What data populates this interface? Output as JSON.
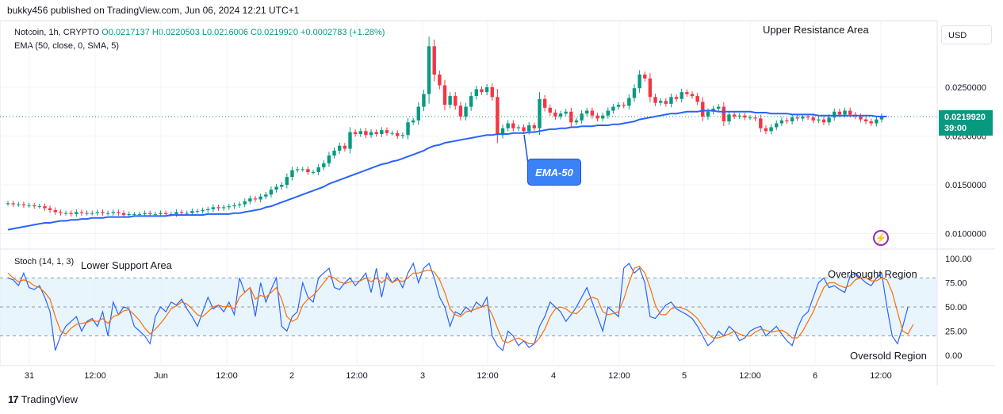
{
  "publisher_line": "bukky456 published on TradingView.com, Jun 06, 2024 12:21 UTC+1",
  "legend": {
    "symbol": "Notcoin, 1h, CRYPTO",
    "ohlc": "O0.0217137 H0.0220503 L0.0216006 C0.0219920 +0.0002783 (+1.28%)",
    "ema": "EMA (50, close, 0, SMA, 5)"
  },
  "stoch_label": "Stoch (14, 1, 3)",
  "currency_button": "USD",
  "last_price": {
    "price": "0.0219920",
    "countdown": "39:00"
  },
  "annotations": {
    "upper_resistance": "Upper Resistance Area",
    "lower_support": "Lower Support Area",
    "ema_callout": "EMA-50",
    "overbought": "Overbought Region",
    "oversold": "Oversold Region"
  },
  "icons": {
    "alert": "lightning-bolt-icon",
    "brand": "tradingview-logo-icon"
  },
  "brand_text": "TradingView",
  "colors": {
    "up": "#089981",
    "down": "#f23645",
    "ema": "#2962ff",
    "k_line": "#2962ff",
    "d_line": "#ff6d00",
    "band_fill": "#e3f2fd"
  },
  "chart_data": [
    {
      "type": "candlestick",
      "title": "Notcoin, 1h, CRYPTO",
      "y_ticks": [
        "0.0250000",
        "0.0200000",
        "0.0150000",
        "0.0100000"
      ],
      "ylim": [
        0.0095,
        0.0295
      ],
      "x_ticks": [
        "31",
        "12:00",
        "Jun",
        "12:00",
        "2",
        "12:00",
        "3",
        "12:00",
        "4",
        "12:00",
        "5",
        "12:00",
        "6",
        "12:00"
      ],
      "last_close": 0.021992,
      "close": [
        0.0131,
        0.013,
        0.013,
        0.0129,
        0.0129,
        0.0128,
        0.0128,
        0.0126,
        0.0124,
        0.0122,
        0.0121,
        0.0121,
        0.012,
        0.0122,
        0.0121,
        0.0121,
        0.0121,
        0.0122,
        0.0121,
        0.0121,
        0.0122,
        0.0121,
        0.0119,
        0.012,
        0.012,
        0.012,
        0.0121,
        0.012,
        0.012,
        0.0121,
        0.012,
        0.012,
        0.0122,
        0.0121,
        0.0121,
        0.0123,
        0.0123,
        0.0124,
        0.0125,
        0.0127,
        0.0126,
        0.0127,
        0.0128,
        0.0129,
        0.013,
        0.0133,
        0.0136,
        0.0135,
        0.0138,
        0.014,
        0.0145,
        0.0148,
        0.015,
        0.0158,
        0.0165,
        0.0166,
        0.0166,
        0.0163,
        0.0163,
        0.0168,
        0.0172,
        0.018,
        0.0185,
        0.019,
        0.0187,
        0.0204,
        0.0202,
        0.0205,
        0.0201,
        0.0204,
        0.0202,
        0.0206,
        0.0203,
        0.0203,
        0.02,
        0.0201,
        0.0214,
        0.0216,
        0.023,
        0.0243,
        0.0292,
        0.0263,
        0.0252,
        0.0232,
        0.0241,
        0.0231,
        0.022,
        0.023,
        0.0241,
        0.0248,
        0.0245,
        0.025,
        0.024,
        0.0201,
        0.0208,
        0.0213,
        0.0208,
        0.0209,
        0.0205,
        0.0211,
        0.0208,
        0.0238,
        0.0229,
        0.0224,
        0.022,
        0.0223,
        0.0225,
        0.0214,
        0.0216,
        0.0223,
        0.0226,
        0.0221,
        0.0218,
        0.0221,
        0.0226,
        0.023,
        0.0232,
        0.0231,
        0.0239,
        0.0249,
        0.0263,
        0.0259,
        0.024,
        0.0234,
        0.0236,
        0.0233,
        0.024,
        0.0238,
        0.0245,
        0.0243,
        0.0241,
        0.0235,
        0.022,
        0.0225,
        0.0228,
        0.023,
        0.0215,
        0.0222,
        0.022,
        0.0221,
        0.0219,
        0.0219,
        0.0218,
        0.0208,
        0.0205,
        0.0209,
        0.0213,
        0.0216,
        0.0215,
        0.0219,
        0.0218,
        0.022,
        0.0219,
        0.0216,
        0.0217,
        0.0214,
        0.0219,
        0.0225,
        0.0222,
        0.0226,
        0.0222,
        0.022,
        0.0217,
        0.0215,
        0.0213,
        0.0217,
        0.022
      ],
      "ema_50": [
        0.0104,
        0.0105,
        0.0106,
        0.0107,
        0.0108,
        0.0109,
        0.011,
        0.0111,
        0.0111,
        0.0112,
        0.0113,
        0.0113,
        0.0114,
        0.0114,
        0.0115,
        0.0115,
        0.0116,
        0.0116,
        0.0116,
        0.0117,
        0.0117,
        0.0117,
        0.0117,
        0.0117,
        0.0118,
        0.0118,
        0.0118,
        0.0118,
        0.0118,
        0.0118,
        0.0118,
        0.0119,
        0.0119,
        0.0119,
        0.0119,
        0.0119,
        0.0119,
        0.0119,
        0.012,
        0.012,
        0.012,
        0.012,
        0.012,
        0.0121,
        0.0121,
        0.0122,
        0.0123,
        0.0124,
        0.0125,
        0.0127,
        0.0128,
        0.013,
        0.0132,
        0.0134,
        0.0136,
        0.0138,
        0.014,
        0.0142,
        0.0144,
        0.0146,
        0.0148,
        0.0151,
        0.0153,
        0.0155,
        0.0157,
        0.0159,
        0.0161,
        0.0163,
        0.0165,
        0.0167,
        0.0169,
        0.0171,
        0.0172,
        0.0174,
        0.0175,
        0.0177,
        0.0179,
        0.0181,
        0.0183,
        0.0185,
        0.0188,
        0.019,
        0.0191,
        0.0193,
        0.0194,
        0.0195,
        0.0196,
        0.0197,
        0.0198,
        0.0199,
        0.02,
        0.0201,
        0.0201,
        0.0202,
        0.0202,
        0.0202,
        0.0203,
        0.0203,
        0.0203,
        0.0204,
        0.0204,
        0.0205,
        0.0206,
        0.0207,
        0.0207,
        0.0208,
        0.0208,
        0.0209,
        0.0209,
        0.021,
        0.021,
        0.021,
        0.0211,
        0.0211,
        0.0211,
        0.0212,
        0.0212,
        0.0213,
        0.0214,
        0.0215,
        0.0217,
        0.0218,
        0.0219,
        0.022,
        0.0221,
        0.0222,
        0.0223,
        0.0223,
        0.0224,
        0.0225,
        0.0225,
        0.0225,
        0.0226,
        0.0226,
        0.0226,
        0.0225,
        0.0225,
        0.0225,
        0.0225,
        0.0225,
        0.0225,
        0.0225,
        0.0224,
        0.0224,
        0.0224,
        0.0223,
        0.0223,
        0.0223,
        0.0223,
        0.0222,
        0.0222,
        0.0222,
        0.0222,
        0.0222,
        0.0221,
        0.0221,
        0.0221,
        0.0221,
        0.0221,
        0.0221,
        0.0221,
        0.0221,
        0.0221,
        0.0221,
        0.0221,
        0.022,
        0.022,
        0.022
      ],
      "series": [
        {
          "name": "EMA (50, close, 0, SMA, 5)"
        }
      ]
    },
    {
      "type": "line",
      "title": "Stoch (14, 1, 3)",
      "y_ticks": [
        "100.00",
        "75.00",
        "50.00",
        "25.00",
        "0.00"
      ],
      "ylim": [
        -5,
        105
      ],
      "reference_levels": [
        80,
        50,
        20
      ],
      "series": [
        {
          "values": [
            80,
            78,
            72,
            85,
            70,
            68,
            72,
            60,
            45,
            5,
            20,
            30,
            35,
            40,
            25,
            35,
            38,
            30,
            45,
            20,
            55,
            42,
            50,
            48,
            30,
            25,
            20,
            12,
            40,
            50,
            45,
            55,
            52,
            58,
            48,
            40,
            30,
            45,
            60,
            48,
            52,
            45,
            55,
            42,
            80,
            65,
            70,
            40,
            75,
            55,
            68,
            80,
            30,
            25,
            40,
            45,
            75,
            60,
            55,
            80,
            85,
            90,
            70,
            68,
            75,
            80,
            72,
            78,
            85,
            65,
            90,
            60,
            85,
            75,
            80,
            70,
            85,
            95,
            75,
            90,
            95,
            80,
            60,
            50,
            30,
            45,
            42,
            50,
            45,
            55,
            50,
            60,
            20,
            10,
            5,
            25,
            20,
            10,
            15,
            8,
            12,
            30,
            40,
            55,
            50,
            45,
            35,
            42,
            50,
            60,
            70,
            55,
            40,
            25,
            50,
            45,
            40,
            90,
            95,
            85,
            90,
            75,
            40,
            38,
            45,
            52,
            55,
            48,
            45,
            42,
            38,
            30,
            20,
            10,
            15,
            25,
            20,
            30,
            25,
            15,
            18,
            25,
            28,
            30,
            20,
            25,
            30,
            22,
            15,
            10,
            28,
            40,
            45,
            60,
            75,
            80,
            70,
            72,
            68,
            65,
            82,
            85,
            80,
            75,
            72,
            80,
            85,
            50,
            20,
            12,
            30,
            50
          ],
          "color": "#2962ff"
        },
        {
          "values": [
            85,
            80,
            76,
            78,
            76,
            72,
            70,
            65,
            58,
            40,
            25,
            22,
            28,
            32,
            33,
            34,
            36,
            35,
            38,
            33,
            40,
            42,
            46,
            47,
            42,
            36,
            28,
            22,
            27,
            33,
            40,
            48,
            51,
            55,
            53,
            48,
            42,
            40,
            45,
            50,
            52,
            50,
            51,
            48,
            60,
            65,
            70,
            58,
            62,
            60,
            65,
            70,
            58,
            40,
            35,
            38,
            52,
            58,
            62,
            68,
            75,
            82,
            80,
            76,
            74,
            76,
            76,
            77,
            80,
            76,
            80,
            75,
            80,
            75,
            78,
            76,
            80,
            85,
            85,
            87,
            88,
            86,
            78,
            65,
            48,
            42,
            40,
            45,
            46,
            48,
            50,
            52,
            42,
            28,
            15,
            13,
            16,
            18,
            15,
            12,
            12,
            18,
            27,
            40,
            48,
            50,
            48,
            44,
            43,
            48,
            57,
            60,
            58,
            45,
            42,
            43,
            45,
            58,
            75,
            90,
            92,
            85,
            70,
            52,
            42,
            42,
            48,
            50,
            49,
            47,
            43,
            38,
            30,
            22,
            18,
            18,
            20,
            22,
            25,
            22,
            20,
            20,
            24,
            27,
            26,
            24,
            25,
            26,
            23,
            18,
            18,
            25,
            35,
            45,
            58,
            70,
            75,
            75,
            72,
            70,
            72,
            78,
            80,
            80,
            77,
            77,
            80,
            78,
            65,
            45,
            25,
            22,
            32
          ],
          "color": "#ff6d00"
        }
      ]
    }
  ]
}
